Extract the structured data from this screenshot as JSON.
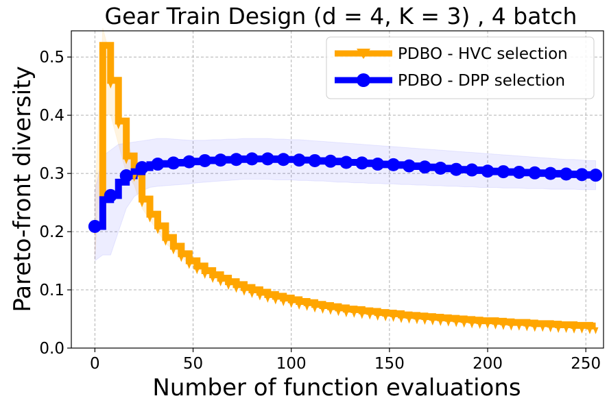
{
  "chart_data": {
    "type": "line",
    "title": "Gear Train Design (d = 4, K = 3) , 4 batch",
    "xlabel": "Number of function evaluations",
    "ylabel": "Pareto-front diversity",
    "xlim": [
      -12,
      259
    ],
    "ylim": [
      0,
      0.545
    ],
    "xticks": [
      0,
      50,
      100,
      150,
      200,
      250
    ],
    "yticks": [
      0.0,
      0.1,
      0.2,
      0.3,
      0.4,
      0.5
    ],
    "xtick_labels": [
      "0",
      "50",
      "100",
      "150",
      "200",
      "250"
    ],
    "ytick_labels": [
      "0.0",
      "0.1",
      "0.2",
      "0.3",
      "0.4",
      "0.5"
    ],
    "grid": true,
    "legend_position": "top-right",
    "series": [
      {
        "name": "PDBO - HVC selection",
        "color": "#FFA500",
        "marker": "tri-down",
        "x": [
          0,
          4,
          8,
          12,
          16,
          20,
          24,
          28,
          32,
          36,
          40,
          44,
          48,
          52,
          56,
          60,
          64,
          68,
          72,
          76,
          80,
          84,
          88,
          92,
          96,
          100,
          104,
          108,
          112,
          116,
          120,
          124,
          128,
          132,
          136,
          140,
          144,
          148,
          152,
          156,
          160,
          164,
          168,
          172,
          176,
          180,
          184,
          188,
          192,
          196,
          200,
          204,
          208,
          212,
          216,
          220,
          224,
          228,
          232,
          236,
          240,
          244,
          248,
          252,
          255
        ],
        "values": [
          0.21,
          0.52,
          0.46,
          0.39,
          0.33,
          0.3,
          0.256,
          0.23,
          0.21,
          0.19,
          0.175,
          0.162,
          0.15,
          0.141,
          0.133,
          0.126,
          0.12,
          0.114,
          0.109,
          0.104,
          0.1,
          0.096,
          0.092,
          0.089,
          0.086,
          0.083,
          0.08,
          0.078,
          0.075,
          0.073,
          0.071,
          0.069,
          0.067,
          0.066,
          0.064,
          0.063,
          0.061,
          0.06,
          0.059,
          0.057,
          0.056,
          0.055,
          0.054,
          0.053,
          0.052,
          0.051,
          0.05,
          0.049,
          0.048,
          0.047,
          0.047,
          0.046,
          0.045,
          0.044,
          0.044,
          0.043,
          0.042,
          0.042,
          0.041,
          0.04,
          0.04,
          0.039,
          0.039,
          0.038,
          0.038
        ],
        "band_lower": [
          0.15,
          0.4,
          0.4,
          0.35,
          0.3,
          0.28,
          0.24,
          0.22,
          0.2,
          0.18,
          0.168,
          0.156,
          0.145,
          0.136,
          0.128,
          0.121,
          0.115,
          0.109,
          0.104,
          0.1,
          0.096,
          0.092,
          0.088,
          0.085,
          0.082,
          0.079,
          0.076,
          0.074,
          0.072,
          0.07,
          0.068,
          0.066,
          0.064,
          0.063,
          0.061,
          0.06,
          0.058,
          0.057,
          0.056,
          0.054,
          0.053,
          0.052,
          0.051,
          0.05,
          0.049,
          0.048,
          0.047,
          0.046,
          0.045,
          0.044,
          0.044,
          0.043,
          0.042,
          0.041,
          0.041,
          0.04,
          0.039,
          0.039,
          0.038,
          0.037,
          0.037,
          0.036,
          0.036,
          0.035,
          0.035
        ],
        "band_upper": [
          0.26,
          0.55,
          0.5,
          0.42,
          0.36,
          0.32,
          0.27,
          0.24,
          0.22,
          0.2,
          0.182,
          0.168,
          0.155,
          0.146,
          0.138,
          0.131,
          0.125,
          0.119,
          0.114,
          0.108,
          0.104,
          0.1,
          0.096,
          0.093,
          0.09,
          0.087,
          0.084,
          0.082,
          0.078,
          0.076,
          0.074,
          0.072,
          0.07,
          0.069,
          0.067,
          0.066,
          0.064,
          0.063,
          0.062,
          0.06,
          0.059,
          0.058,
          0.057,
          0.056,
          0.055,
          0.054,
          0.053,
          0.052,
          0.051,
          0.05,
          0.05,
          0.049,
          0.048,
          0.047,
          0.047,
          0.046,
          0.045,
          0.045,
          0.044,
          0.043,
          0.043,
          0.042,
          0.042,
          0.041,
          0.041
        ]
      },
      {
        "name": "PDBO - DPP selection",
        "color": "#0000FF",
        "marker": "circle",
        "x": [
          0,
          4,
          8,
          12,
          16,
          20,
          24,
          28,
          32,
          36,
          40,
          44,
          48,
          52,
          56,
          60,
          64,
          68,
          72,
          76,
          80,
          84,
          88,
          92,
          96,
          100,
          104,
          108,
          112,
          116,
          120,
          124,
          128,
          132,
          136,
          140,
          144,
          148,
          152,
          156,
          160,
          164,
          168,
          172,
          176,
          180,
          184,
          188,
          192,
          196,
          200,
          204,
          208,
          212,
          216,
          220,
          224,
          228,
          232,
          236,
          240,
          244,
          248,
          252,
          255
        ],
        "values": [
          0.209,
          0.255,
          0.262,
          0.285,
          0.296,
          0.303,
          0.31,
          0.315,
          0.316,
          0.317,
          0.318,
          0.319,
          0.32,
          0.321,
          0.322,
          0.323,
          0.323,
          0.324,
          0.324,
          0.325,
          0.325,
          0.325,
          0.325,
          0.324,
          0.324,
          0.324,
          0.323,
          0.323,
          0.322,
          0.321,
          0.321,
          0.32,
          0.319,
          0.319,
          0.318,
          0.317,
          0.316,
          0.315,
          0.315,
          0.314,
          0.313,
          0.312,
          0.311,
          0.31,
          0.309,
          0.308,
          0.307,
          0.306,
          0.306,
          0.305,
          0.304,
          0.303,
          0.303,
          0.302,
          0.302,
          0.301,
          0.301,
          0.3,
          0.3,
          0.299,
          0.299,
          0.298,
          0.298,
          0.297,
          0.297
        ],
        "band_lower": [
          0.15,
          0.16,
          0.16,
          0.2,
          0.24,
          0.26,
          0.27,
          0.276,
          0.278,
          0.279,
          0.28,
          0.281,
          0.282,
          0.284,
          0.285,
          0.286,
          0.287,
          0.288,
          0.289,
          0.29,
          0.29,
          0.29,
          0.29,
          0.289,
          0.289,
          0.289,
          0.288,
          0.288,
          0.287,
          0.287,
          0.286,
          0.285,
          0.285,
          0.284,
          0.284,
          0.283,
          0.283,
          0.282,
          0.282,
          0.281,
          0.281,
          0.28,
          0.28,
          0.279,
          0.279,
          0.278,
          0.278,
          0.277,
          0.277,
          0.276,
          0.276,
          0.276,
          0.275,
          0.275,
          0.275,
          0.274,
          0.274,
          0.274,
          0.273,
          0.273,
          0.273,
          0.273,
          0.272,
          0.272,
          0.272
        ],
        "band_upper": [
          0.27,
          0.33,
          0.34,
          0.35,
          0.352,
          0.354,
          0.356,
          0.358,
          0.36,
          0.36,
          0.359,
          0.358,
          0.357,
          0.357,
          0.357,
          0.358,
          0.358,
          0.359,
          0.359,
          0.36,
          0.36,
          0.36,
          0.36,
          0.359,
          0.359,
          0.358,
          0.358,
          0.357,
          0.356,
          0.355,
          0.354,
          0.353,
          0.352,
          0.351,
          0.35,
          0.349,
          0.348,
          0.347,
          0.346,
          0.345,
          0.344,
          0.343,
          0.342,
          0.341,
          0.34,
          0.339,
          0.338,
          0.337,
          0.336,
          0.335,
          0.334,
          0.333,
          0.332,
          0.331,
          0.33,
          0.329,
          0.328,
          0.327,
          0.326,
          0.325,
          0.324,
          0.324,
          0.323,
          0.322,
          0.322
        ]
      }
    ]
  }
}
